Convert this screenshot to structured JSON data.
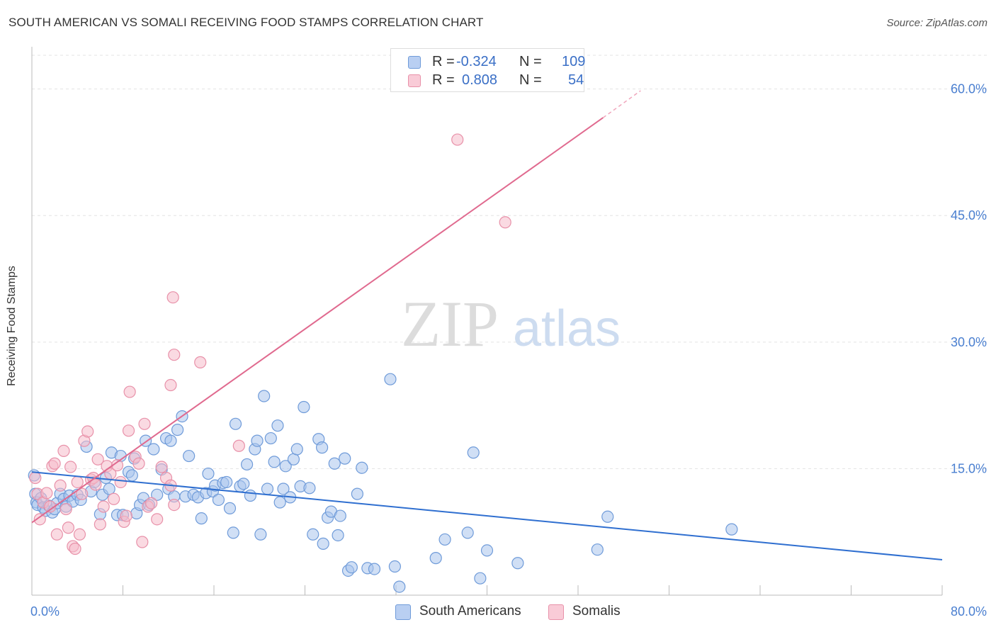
{
  "header": {
    "title": "SOUTH AMERICAN VS SOMALI RECEIVING FOOD STAMPS CORRELATION CHART",
    "source": "Source: ZipAtlas.com"
  },
  "watermark": {
    "zip": "ZIP",
    "atlas": "atlas"
  },
  "legend": {
    "r_label": "R =",
    "n_label": "N =",
    "entries": [
      {
        "r": "-0.324",
        "n": "109"
      },
      {
        "r": "0.808",
        "n": "54"
      }
    ]
  },
  "colors": {
    "blue_fill": "#a9c4ec",
    "blue_stroke": "#6f9bd9",
    "blue_line": "#2f6fd0",
    "pink_fill": "#f6bccb",
    "pink_stroke": "#e891a9",
    "pink_line": "#e06a8f",
    "axis_text": "#4a7fd0",
    "grid": "#e3e3e3"
  },
  "chart_data": {
    "type": "scatter",
    "title": "SOUTH AMERICAN VS SOMALI RECEIVING FOOD STAMPS CORRELATION CHART",
    "ylabel": "Receiving Food Stamps",
    "xlim": [
      0,
      80
    ],
    "ylim": [
      0,
      64
    ],
    "x_tick_labels": [
      "0.0%",
      "80.0%"
    ],
    "y_ticks": [
      15,
      30,
      45,
      60
    ],
    "y_tick_labels": [
      "15.0%",
      "30.0%",
      "45.0%",
      "60.0%"
    ],
    "grid": true,
    "legend_position": "top-center",
    "series": [
      {
        "name": "South Americans",
        "r": -0.324,
        "n": 109,
        "trend": {
          "x": [
            0,
            80
          ],
          "y": [
            14.6,
            4.2
          ]
        },
        "points": [
          [
            0.2,
            14.2
          ],
          [
            0.3,
            12.0
          ],
          [
            0.4,
            11.0
          ],
          [
            0.5,
            10.7
          ],
          [
            0.8,
            11.5
          ],
          [
            1.0,
            10.4
          ],
          [
            1.2,
            10.0
          ],
          [
            1.5,
            10.6
          ],
          [
            1.8,
            9.8
          ],
          [
            2.0,
            10.2
          ],
          [
            2.2,
            10.9
          ],
          [
            2.5,
            12.0
          ],
          [
            2.8,
            11.4
          ],
          [
            3.0,
            10.5
          ],
          [
            3.3,
            11.8
          ],
          [
            3.6,
            11.1
          ],
          [
            4.0,
            11.9
          ],
          [
            4.3,
            11.3
          ],
          [
            4.8,
            17.6
          ],
          [
            5.2,
            12.3
          ],
          [
            5.5,
            13.4
          ],
          [
            6.0,
            9.6
          ],
          [
            6.2,
            11.9
          ],
          [
            6.5,
            13.9
          ],
          [
            6.8,
            12.6
          ],
          [
            7.0,
            16.9
          ],
          [
            7.5,
            9.5
          ],
          [
            7.8,
            16.5
          ],
          [
            8.0,
            9.5
          ],
          [
            8.5,
            14.6
          ],
          [
            8.8,
            14.2
          ],
          [
            9.0,
            16.2
          ],
          [
            9.2,
            9.7
          ],
          [
            9.5,
            10.7
          ],
          [
            9.8,
            11.5
          ],
          [
            10.0,
            18.3
          ],
          [
            10.3,
            10.7
          ],
          [
            10.7,
            17.3
          ],
          [
            11.0,
            11.9
          ],
          [
            11.4,
            14.9
          ],
          [
            11.8,
            18.6
          ],
          [
            12.0,
            12.6
          ],
          [
            12.2,
            18.3
          ],
          [
            12.5,
            11.7
          ],
          [
            12.8,
            19.6
          ],
          [
            13.2,
            21.2
          ],
          [
            13.5,
            11.7
          ],
          [
            13.8,
            16.5
          ],
          [
            14.2,
            11.9
          ],
          [
            14.6,
            11.6
          ],
          [
            14.9,
            9.1
          ],
          [
            15.3,
            12.1
          ],
          [
            15.5,
            14.4
          ],
          [
            15.9,
            12.3
          ],
          [
            16.1,
            13.0
          ],
          [
            16.4,
            11.3
          ],
          [
            16.8,
            13.3
          ],
          [
            17.1,
            13.4
          ],
          [
            17.4,
            10.3
          ],
          [
            17.7,
            7.4
          ],
          [
            17.9,
            20.3
          ],
          [
            18.3,
            12.9
          ],
          [
            18.6,
            13.2
          ],
          [
            18.9,
            15.5
          ],
          [
            19.2,
            11.8
          ],
          [
            19.6,
            17.3
          ],
          [
            19.8,
            18.3
          ],
          [
            20.1,
            7.2
          ],
          [
            20.4,
            23.6
          ],
          [
            20.7,
            12.6
          ],
          [
            21.0,
            18.6
          ],
          [
            21.3,
            15.8
          ],
          [
            21.6,
            20.1
          ],
          [
            21.8,
            11.0
          ],
          [
            22.1,
            12.6
          ],
          [
            22.3,
            15.3
          ],
          [
            22.7,
            11.6
          ],
          [
            23.0,
            16.1
          ],
          [
            23.3,
            17.3
          ],
          [
            23.6,
            12.9
          ],
          [
            23.9,
            22.3
          ],
          [
            24.4,
            12.7
          ],
          [
            24.7,
            7.2
          ],
          [
            25.2,
            18.5
          ],
          [
            25.5,
            17.5
          ],
          [
            25.6,
            6.1
          ],
          [
            26.0,
            9.2
          ],
          [
            26.3,
            9.9
          ],
          [
            26.6,
            15.6
          ],
          [
            26.9,
            7.1
          ],
          [
            27.1,
            9.4
          ],
          [
            27.5,
            16.2
          ],
          [
            27.8,
            2.9
          ],
          [
            28.1,
            3.3
          ],
          [
            28.6,
            12.0
          ],
          [
            29.0,
            15.1
          ],
          [
            29.5,
            3.2
          ],
          [
            30.1,
            3.1
          ],
          [
            31.5,
            25.6
          ],
          [
            31.9,
            3.4
          ],
          [
            32.3,
            1.0
          ],
          [
            35.5,
            4.4
          ],
          [
            36.3,
            6.6
          ],
          [
            38.3,
            7.4
          ],
          [
            38.8,
            16.9
          ],
          [
            39.4,
            2.0
          ],
          [
            40.0,
            5.3
          ],
          [
            42.7,
            3.8
          ],
          [
            49.7,
            5.4
          ],
          [
            50.6,
            9.3
          ],
          [
            61.5,
            7.8
          ]
        ]
      },
      {
        "name": "Somalis",
        "r": 0.808,
        "n": 54,
        "trend": {
          "x": [
            0,
            50.2
          ],
          "y": [
            8.6,
            56.6
          ]
        },
        "trend_dashed": {
          "x": [
            50.2,
            53.5
          ],
          "y": [
            56.6,
            59.8
          ]
        },
        "points": [
          [
            0.3,
            13.9
          ],
          [
            0.5,
            12.0
          ],
          [
            0.7,
            9.0
          ],
          [
            1.0,
            11.0
          ],
          [
            1.3,
            12.1
          ],
          [
            1.6,
            10.5
          ],
          [
            1.8,
            15.3
          ],
          [
            2.0,
            15.6
          ],
          [
            2.2,
            7.2
          ],
          [
            2.5,
            13.0
          ],
          [
            2.8,
            17.1
          ],
          [
            3.0,
            10.2
          ],
          [
            3.2,
            8.0
          ],
          [
            3.4,
            15.2
          ],
          [
            3.6,
            5.8
          ],
          [
            3.8,
            5.5
          ],
          [
            4.0,
            13.4
          ],
          [
            4.2,
            7.2
          ],
          [
            4.4,
            12.0
          ],
          [
            4.6,
            18.3
          ],
          [
            4.9,
            19.4
          ],
          [
            5.2,
            13.7
          ],
          [
            5.4,
            13.9
          ],
          [
            5.6,
            13.1
          ],
          [
            5.8,
            16.1
          ],
          [
            6.0,
            8.4
          ],
          [
            6.3,
            10.5
          ],
          [
            6.6,
            15.3
          ],
          [
            6.9,
            14.4
          ],
          [
            7.2,
            11.4
          ],
          [
            7.5,
            15.4
          ],
          [
            7.8,
            13.4
          ],
          [
            8.1,
            8.7
          ],
          [
            8.3,
            9.4
          ],
          [
            8.6,
            24.1
          ],
          [
            8.5,
            19.5
          ],
          [
            9.1,
            16.4
          ],
          [
            9.4,
            15.6
          ],
          [
            9.7,
            6.3
          ],
          [
            9.9,
            20.3
          ],
          [
            10.2,
            10.5
          ],
          [
            10.5,
            10.9
          ],
          [
            11.0,
            9.0
          ],
          [
            11.4,
            15.2
          ],
          [
            11.8,
            13.9
          ],
          [
            12.2,
            13.0
          ],
          [
            12.5,
            10.7
          ],
          [
            12.2,
            24.9
          ],
          [
            12.4,
            35.3
          ],
          [
            12.5,
            28.5
          ],
          [
            14.8,
            27.6
          ],
          [
            18.2,
            17.7
          ],
          [
            37.4,
            54.0
          ],
          [
            41.6,
            44.2
          ]
        ]
      }
    ]
  },
  "bottom_legend": [
    {
      "label": "South Americans"
    },
    {
      "label": "Somalis"
    }
  ]
}
